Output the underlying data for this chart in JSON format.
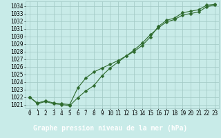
{
  "title": "Graphe pression niveau de la mer (hPa)",
  "x_values": [
    0,
    1,
    2,
    3,
    4,
    5,
    6,
    7,
    8,
    9,
    10,
    11,
    12,
    13,
    14,
    15,
    16,
    17,
    18,
    19,
    20,
    21,
    22,
    23
  ],
  "line1": [
    1022.0,
    1021.1,
    1021.4,
    1021.1,
    1021.0,
    1020.85,
    1021.9,
    1022.8,
    1023.5,
    1024.8,
    1025.8,
    1026.6,
    1027.4,
    1028.2,
    1029.1,
    1030.2,
    1031.1,
    1031.9,
    1032.2,
    1032.8,
    1033.0,
    1033.2,
    1033.9,
    1034.1
  ],
  "line2": [
    1022.0,
    1021.2,
    1021.5,
    1021.2,
    1021.1,
    1021.0,
    1023.2,
    1024.5,
    1025.3,
    1025.8,
    1026.3,
    1026.8,
    1027.4,
    1028.0,
    1028.8,
    1029.9,
    1031.3,
    1032.1,
    1032.4,
    1033.1,
    1033.3,
    1033.5,
    1034.1,
    1034.2
  ],
  "line_color": "#2d6a2d",
  "bg_color": "#c8ebe8",
  "grid_color": "#a0c8c4",
  "title_bg_color": "#2d6a2d",
  "title_text_color": "#ffffff",
  "marker": "D",
  "marker_size": 2.5,
  "ylim": [
    1020.5,
    1034.6
  ],
  "xlim": [
    -0.5,
    23.5
  ],
  "yticks": [
    1021,
    1022,
    1023,
    1024,
    1025,
    1026,
    1027,
    1028,
    1029,
    1030,
    1031,
    1032,
    1033,
    1034
  ],
  "xtick_labels": [
    "0",
    "1",
    "2",
    "3",
    "4",
    "5",
    "6",
    "7",
    "8",
    "9",
    "10",
    "11",
    "12",
    "13",
    "14",
    "15",
    "16",
    "17",
    "18",
    "19",
    "20",
    "21",
    "22",
    "23"
  ],
  "tick_fontsize": 5.5,
  "title_fontsize": 7.0,
  "line_width": 0.8
}
